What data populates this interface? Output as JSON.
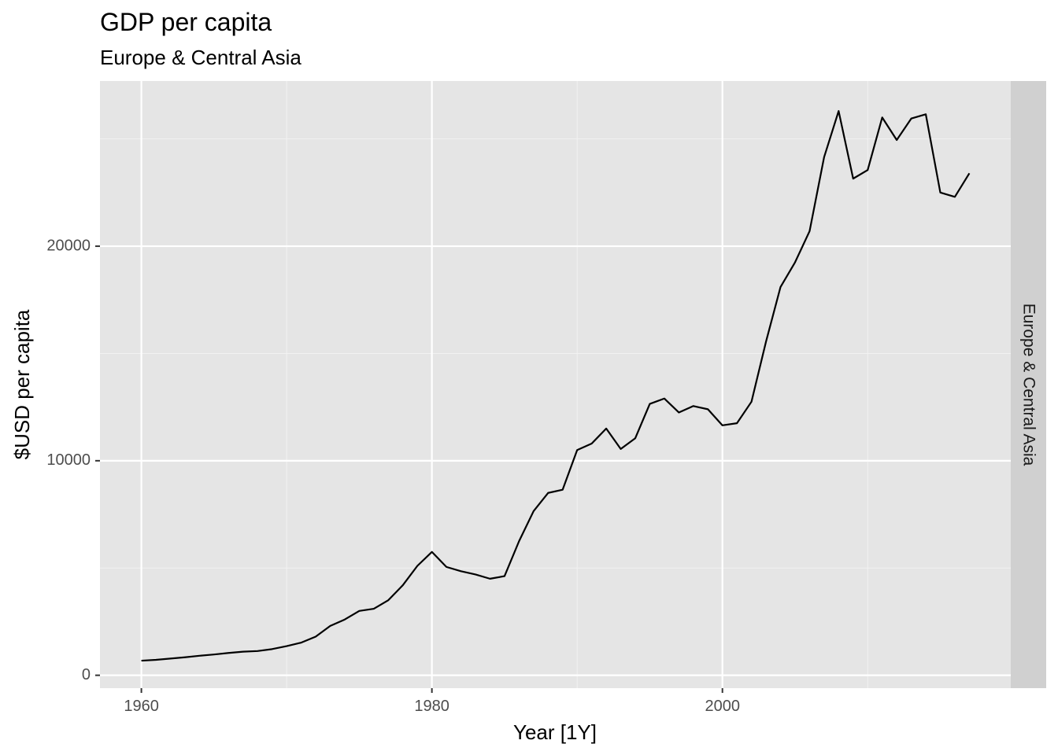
{
  "chart_data": {
    "type": "line",
    "title": "GDP per capita",
    "subtitle": "Europe & Central Asia",
    "xlabel": "Year [1Y]",
    "ylabel": "$USD per capita",
    "facet_label": "Europe & Central Asia",
    "x_ticks": [
      1960,
      1980,
      2000
    ],
    "y_ticks": [
      0,
      10000,
      20000
    ],
    "xlim": [
      1957.15,
      2019.85
    ],
    "ylim": [
      -600,
      27700
    ],
    "grid": true,
    "line_color": "#000000",
    "panel_color": "#e5e5e5",
    "strip_color": "#d0d0d0",
    "x": [
      1960,
      1961,
      1962,
      1963,
      1964,
      1965,
      1966,
      1967,
      1968,
      1969,
      1970,
      1971,
      1972,
      1973,
      1974,
      1975,
      1976,
      1977,
      1978,
      1979,
      1980,
      1981,
      1982,
      1983,
      1984,
      1985,
      1986,
      1987,
      1988,
      1989,
      1990,
      1991,
      1992,
      1993,
      1994,
      1995,
      1996,
      1997,
      1998,
      1999,
      2000,
      2001,
      2002,
      2003,
      2004,
      2005,
      2006,
      2007,
      2008,
      2009,
      2010,
      2011,
      2012,
      2013,
      2014,
      2015,
      2016,
      2017
    ],
    "y": [
      680,
      720,
      780,
      840,
      910,
      970,
      1040,
      1100,
      1130,
      1220,
      1360,
      1520,
      1800,
      2300,
      2600,
      3000,
      3100,
      3500,
      4200,
      5100,
      5750,
      5050,
      4850,
      4700,
      4500,
      4620,
      6250,
      7650,
      8500,
      8650,
      10500,
      10800,
      11500,
      10550,
      11050,
      12650,
      12900,
      12250,
      12550,
      12400,
      11650,
      11750,
      12750,
      15550,
      18100,
      19250,
      20700,
      24150,
      26300,
      23150,
      23550,
      26000,
      24950,
      25950,
      26150,
      22500,
      22300,
      23400
    ]
  }
}
